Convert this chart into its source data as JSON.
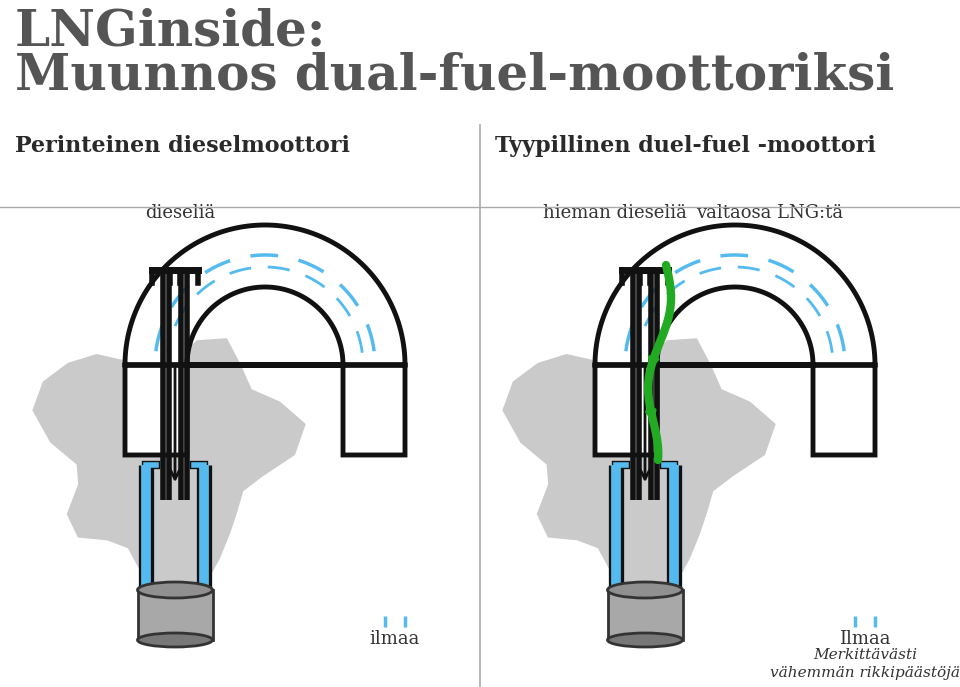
{
  "title_line1": "LNGinside:",
  "title_line2": "Muunnos dual-fuel-moottoriksi",
  "left_subtitle": "Perinteinen dieselmoottori",
  "right_subtitle": "Tyypillinen duel-fuel -moottori",
  "left_label_diesel": "dieseliä",
  "left_label_air": "ilmaa",
  "right_label_diesel": "hieman dieseliä",
  "right_label_lng": "valtaosa LNG:tä",
  "right_label_air": "Ilmaa",
  "right_label_emission": "Merkittävästi\nvähemmän rikkipäästöjä",
  "title_color": "#555555",
  "subtitle_color": "#2a2a2a",
  "label_color": "#333333",
  "black": "#111111",
  "blue": "#55bbee",
  "green": "#22aa22",
  "gray_bg": "#c0c0c0",
  "white": "#ffffff",
  "divider_color": "#aaaaaa",
  "bg_color": "#ffffff"
}
